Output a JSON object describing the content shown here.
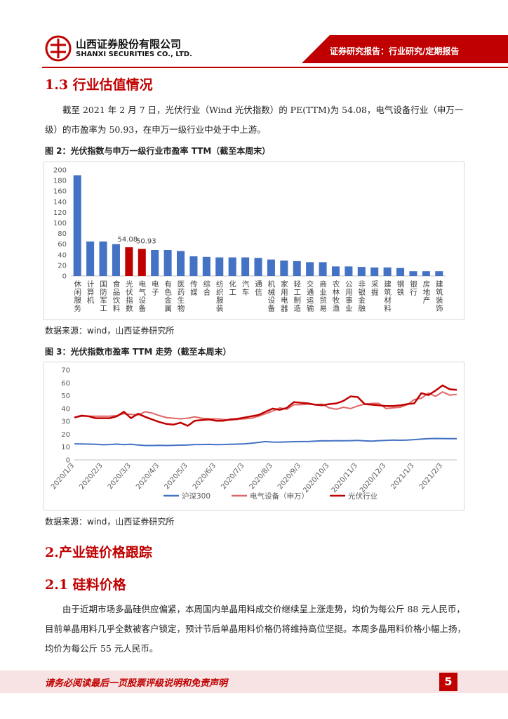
{
  "header": {
    "company_cn": "山西证券股份有限公司",
    "company_en": "SHANXI SECURITIES CO., LTD.",
    "report_type": "证券研究报告：行业研究/定期报告"
  },
  "section_1_3": {
    "heading": "1.3 行业估值情况",
    "paragraph": "截至 2021 年 2 月 7 日，光伏行业（Wind 光伏指数）的 PE(TTM)为 54.08，电气设备行业（申万一级）的市盈率为 50.93，在申万一级行业中处于中上游。"
  },
  "figure_2": {
    "caption": "图 2：光伏指数与申万一级行业市盈率 TTM（截至本周末）",
    "source": "数据来源：wind，山西证券研究所"
  },
  "figure_3": {
    "caption": "图 3：光伏指数市盈率 TTM 走势（截至本周末）",
    "source": "数据来源：wind，山西证券研究所"
  },
  "section_2": {
    "heading": "2.产业链价格跟踪"
  },
  "section_2_1": {
    "heading": "2.1 硅料价格",
    "paragraph": "由于近期市场多晶硅供应偏紧，本周国内单晶用料成交价继续呈上涨走势，均价为每公斤 88 元人民币，目前单晶用料几乎全数被客户锁定，预计节后单晶用料价格仍将维持高位坚挺。本周多晶用料价格小幅上扬，均价为每公斤 55 元人民币。"
  },
  "footer": {
    "disclaimer": "请务必阅读最后一页股票评级说明和免责声明",
    "page": "5"
  },
  "chart_data": [
    {
      "type": "bar",
      "categories": [
        "休闲服务",
        "计算机",
        "国防军工",
        "食品饮料",
        "光伏指数",
        "电气设备",
        "电子",
        "有色金属",
        "医药生物",
        "传媒",
        "综合",
        "纺织服装",
        "化工",
        "汽车",
        "通信",
        "机械设备",
        "家用电器",
        "轻工制造",
        "交通运输",
        "商业贸易",
        "农林牧渔",
        "公用事业",
        "非银金融",
        "采掘",
        "建筑材料",
        "钢铁",
        "银行",
        "房地产",
        "建筑装饰"
      ],
      "values": [
        190,
        65,
        65,
        60,
        54.08,
        50.93,
        49,
        49,
        47,
        37,
        36,
        35,
        35,
        35,
        34,
        31,
        29,
        28,
        26,
        26,
        18,
        18,
        17,
        16,
        16,
        15,
        9,
        9,
        9
      ],
      "colors": [
        "#4472c4",
        "#4472c4",
        "#4472c4",
        "#4472c4",
        "#c00000",
        "#c00000",
        "#4472c4",
        "#4472c4",
        "#4472c4",
        "#4472c4",
        "#4472c4",
        "#4472c4",
        "#4472c4",
        "#4472c4",
        "#4472c4",
        "#4472c4",
        "#4472c4",
        "#4472c4",
        "#4472c4",
        "#4472c4",
        "#4472c4",
        "#4472c4",
        "#4472c4",
        "#4472c4",
        "#4472c4",
        "#4472c4",
        "#4472c4",
        "#4472c4",
        "#4472c4"
      ],
      "show_value_label": [
        false,
        false,
        false,
        false,
        true,
        true,
        false,
        false,
        false,
        false,
        false,
        false,
        false,
        false,
        false,
        false,
        false,
        false,
        false,
        false,
        false,
        false,
        false,
        false,
        false,
        false,
        false,
        false,
        false
      ],
      "ylim": [
        0,
        200
      ],
      "yticks": [
        0,
        20,
        40,
        60,
        80,
        100,
        120,
        140,
        160,
        180,
        200
      ],
      "grid": false
    },
    {
      "type": "line",
      "categories": [
        "2020/1/3",
        null,
        null,
        null,
        "2020/2/3",
        null,
        null,
        null,
        "2020/3/3",
        null,
        null,
        null,
        "2020/4/3",
        null,
        null,
        null,
        "2020/5/3",
        null,
        null,
        null,
        "2020/6/3",
        null,
        null,
        null,
        "2020/7/3",
        null,
        null,
        null,
        "2020/8/3",
        null,
        null,
        null,
        "2020/9/3",
        null,
        null,
        null,
        "2020/10/3",
        null,
        null,
        null,
        "2020/11/3",
        null,
        null,
        null,
        "2020/12/3",
        null,
        null,
        null,
        "2021/1/3",
        null,
        null,
        null,
        "2021/2/3",
        null,
        null
      ],
      "series": [
        {
          "name": "沪深300",
          "color": "#4472c4",
          "values": [
            12.5,
            12.4,
            12.3,
            12.2,
            11.8,
            12.0,
            12.3,
            11.9,
            12.2,
            11.6,
            11.2,
            11.2,
            11.3,
            11.2,
            11.4,
            11.5,
            11.6,
            12.0,
            12.0,
            12.1,
            11.9,
            12.0,
            12.2,
            12.3,
            12.5,
            13.0,
            13.6,
            14.3,
            13.9,
            13.8,
            14.0,
            14.2,
            14.3,
            14.3,
            14.6,
            14.9,
            14.8,
            15.0,
            14.9,
            15.0,
            15.2,
            14.8,
            14.6,
            15.0,
            15.2,
            15.4,
            15.3,
            15.5,
            15.8,
            16.2,
            16.5,
            16.7,
            16.6,
            16.5,
            16.5
          ]
        },
        {
          "name": "电气设备（申万）",
          "color": "#e06666",
          "values": [
            33,
            34,
            34,
            34,
            34,
            34,
            34.5,
            36,
            35.5,
            35,
            37.5,
            36.5,
            34.5,
            33,
            32.5,
            32,
            32.5,
            33.5,
            32.5,
            32,
            32,
            31.5,
            31,
            31.5,
            32,
            32.5,
            34,
            36,
            38,
            40.5,
            39.5,
            43,
            43,
            43.5,
            43,
            43.5,
            40.5,
            39.5,
            41,
            40,
            42,
            43.5,
            44,
            44,
            40,
            40.5,
            41,
            43,
            47,
            48,
            52,
            49.5,
            53,
            50.5,
            51
          ]
        },
        {
          "name": "光伏行业",
          "color": "#c00000",
          "values": [
            33,
            34.5,
            34,
            32.5,
            32.5,
            32.5,
            34,
            37.5,
            32.5,
            36,
            33.5,
            31.5,
            29.5,
            28,
            27.5,
            29,
            26.5,
            30.5,
            31,
            31.5,
            30.5,
            30.5,
            31.5,
            32,
            33,
            34,
            35,
            37.5,
            40,
            39,
            40.5,
            45,
            44.5,
            44,
            43,
            42.5,
            43.5,
            44,
            46,
            49.5,
            49,
            43.5,
            43,
            42.5,
            42,
            42,
            42.5,
            43.5,
            44,
            52,
            50.5,
            54,
            58,
            55,
            54.5
          ]
        }
      ],
      "ylim": [
        0,
        70
      ],
      "yticks": [
        0,
        10,
        20,
        30,
        40,
        50,
        60,
        70
      ],
      "grid": false,
      "legend": "bottom"
    }
  ]
}
